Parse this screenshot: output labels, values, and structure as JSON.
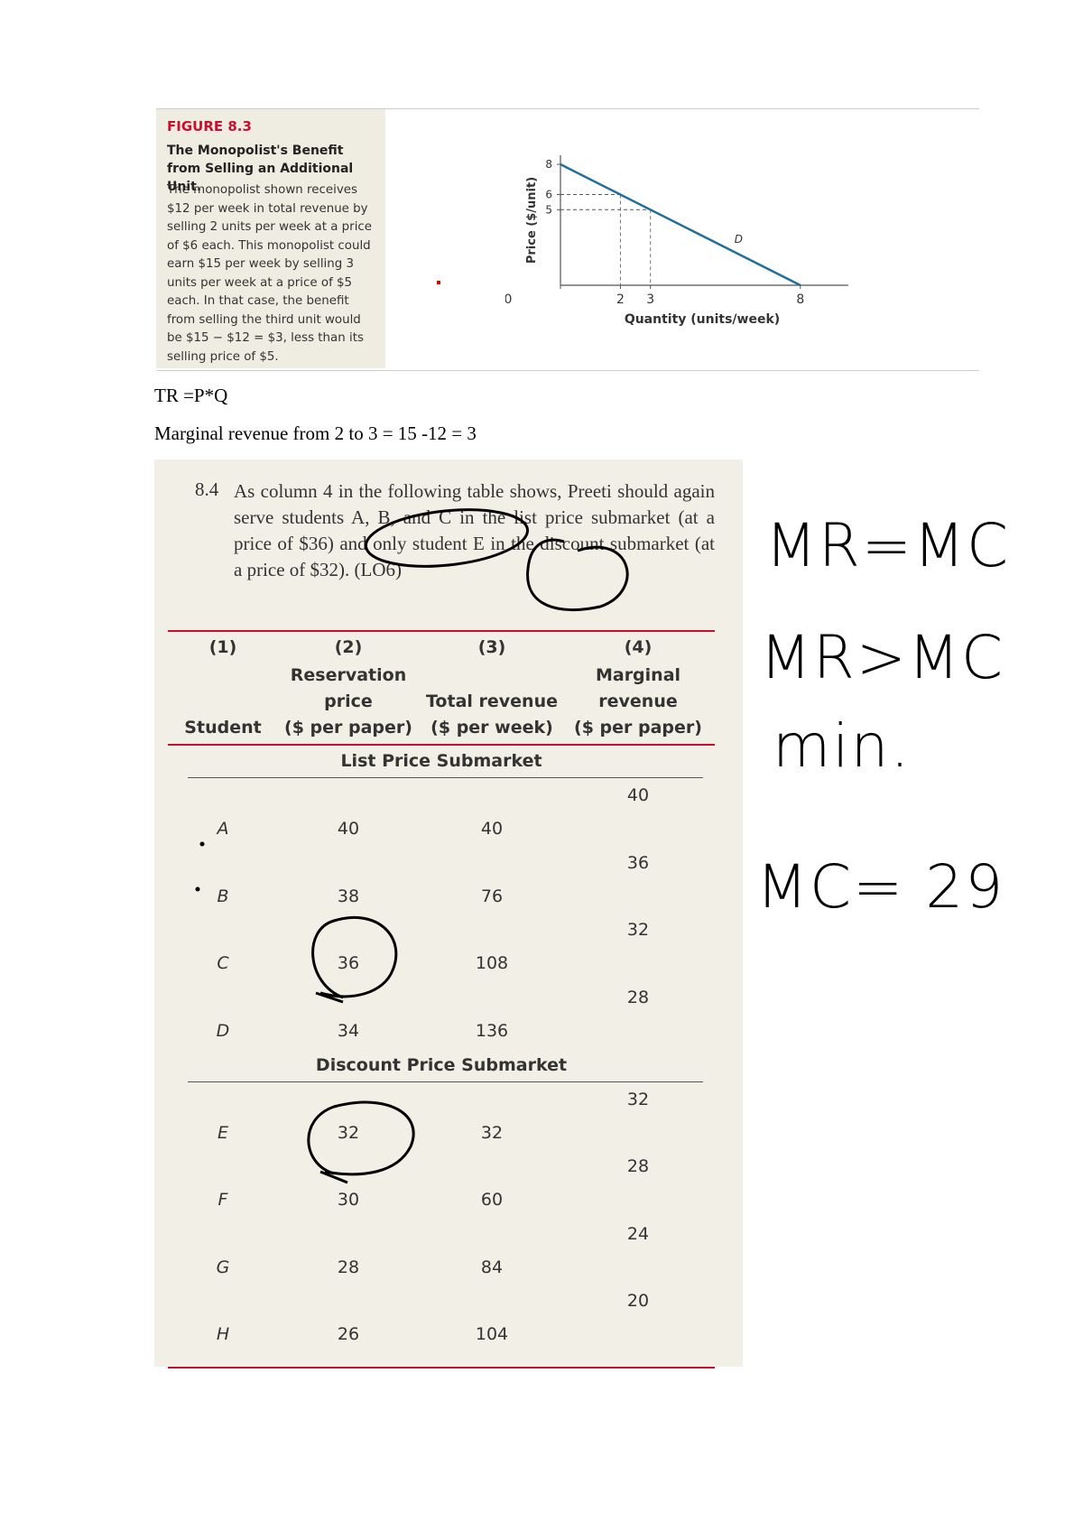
{
  "figure": {
    "label": "FIGURE 8.3",
    "title": "The Monopolist's Benefit from Selling an Additional Unit.",
    "caption": "The monopolist shown receives $12 per week in total revenue by selling 2 units per week at a price of $6 each. This monopolist could earn $15 per week by selling 3 units per week at a price of $5 each. In that case, the benefit from selling the third unit would be $15 − $12 = $3, less than its selling price of $5.",
    "chart": {
      "type": "line",
      "x_label": "Quantity (units/week)",
      "y_label": "Price ($/unit)",
      "x": [
        0,
        8
      ],
      "values": [
        8,
        0
      ],
      "line_label": "D",
      "color": "#1f6f9a",
      "xlim": [
        0,
        9.6
      ],
      "ylim": [
        0,
        8.6
      ],
      "xticks": [
        0,
        2,
        3,
        8
      ],
      "yticks": [
        5,
        6,
        8
      ],
      "guides": [
        {
          "x": 2,
          "y": 6
        },
        {
          "x": 3,
          "y": 5
        }
      ]
    }
  },
  "notes": [
    "TR =P*Q",
    "Marginal revenue from 2 to 3 = 15 -12 = 3"
  ],
  "exercise": {
    "number": "8.4",
    "text": "As column 4 in the following table shows, Preeti should again serve students A, B, and C in the list price submarket (at a price of $36) and only student E in the discount submarket (at a price of $32). (LO6)"
  },
  "table": {
    "columns": [
      {
        "number": "(1)",
        "lines": [
          "Student"
        ]
      },
      {
        "number": "(2)",
        "lines": [
          "Reservation",
          "price",
          "($ per paper)"
        ]
      },
      {
        "number": "(3)",
        "lines": [
          "Total revenue",
          "($ per week)"
        ]
      },
      {
        "number": "(4)",
        "lines": [
          "Marginal",
          "revenue",
          "($ per paper)"
        ]
      }
    ],
    "sections": [
      {
        "title": "List Price Submarket",
        "rows": [
          [
            "A",
            40,
            40
          ],
          [
            "B",
            38,
            76
          ],
          [
            "C",
            36,
            108
          ],
          [
            "D",
            34,
            136
          ]
        ],
        "marginal": [
          40,
          36,
          32,
          28
        ]
      },
      {
        "title": "Discount Price Submarket",
        "rows": [
          [
            "E",
            32,
            32
          ],
          [
            "F",
            30,
            60
          ],
          [
            "G",
            28,
            84
          ],
          [
            "H",
            26,
            104
          ]
        ],
        "marginal": [
          32,
          28,
          24,
          20
        ]
      }
    ]
  },
  "annotations": [
    "MR=MC",
    "MR>MC",
    "min.",
    "MC= 29"
  ]
}
